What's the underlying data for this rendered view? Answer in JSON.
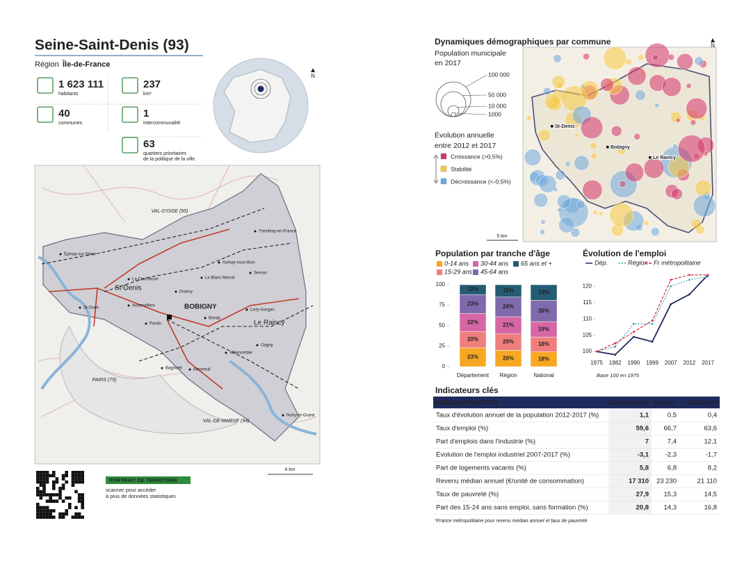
{
  "header": {
    "title": "Seine-Saint-Denis (93)",
    "region_label": "Région",
    "region": "Île-de-France",
    "north": "N"
  },
  "stats": [
    {
      "value": "1 623 111",
      "lines": [
        "habitants"
      ]
    },
    {
      "value": "237",
      "lines": [
        "km²"
      ]
    },
    {
      "value": "40",
      "lines": [
        "communes"
      ]
    },
    {
      "value": "1",
      "lines": [
        "intercommunalité"
      ]
    },
    {
      "value": "63",
      "lines": [
        "quartiers prioritaires",
        "de la politique de la ville"
      ]
    }
  ],
  "map": {
    "places": [
      "VAL-D'OISE (95)",
      "Tremblay-en-France",
      "Épinay-sur-Seine",
      "Aulnay-sous-Bois",
      "Sevran",
      "La Courneuve",
      "Le Blanc-Mesnil",
      "St-Denis",
      "Drancy",
      "St-Ouen",
      "Aubervilliers",
      "BOBIGNY",
      "Livry-Gargan",
      "Pantin",
      "Bondy",
      "Le Raincy",
      "Gagny",
      "Villemomble",
      "Bagnolet",
      "Montreuil",
      "PARIS (75)",
      "VAL-DE-MARNE (94)",
      "Noisy-le-Grand"
    ],
    "scale": "4 km"
  },
  "footer": {
    "badge": "PORTRAIT DE TERRITOIRE",
    "lines": [
      "scanner pour accéder",
      "à plus de données statistiques"
    ]
  },
  "demography_map": {
    "title": "Dynamiques démographiques par commune",
    "north": "N",
    "size_title": "Population municipale",
    "size_subtitle": "en 2017",
    "sizes": [
      "100 000",
      "50 000",
      "10 000",
      "1000"
    ],
    "trend_title": "Évolution annuelle",
    "trend_subtitle": "entre 2012 et 2017",
    "trends": [
      {
        "label": "Croissance (>0,5%)",
        "color": "#d6336c"
      },
      {
        "label": "Stabilité",
        "color": "#f5c842"
      },
      {
        "label": "Décroissance (<-0,5%)",
        "color": "#6fa8dc"
      }
    ],
    "places": [
      "St-Denis",
      "Bobigny",
      "Le Raincy"
    ],
    "scale": "5 km"
  },
  "chart_data": [
    {
      "type": "stacked-bar",
      "title": "Population par tranche d'âge",
      "categories": [
        "Département",
        "Région",
        "National"
      ],
      "series": [
        {
          "name": "0-14 ans",
          "color": "#f7a823",
          "values": [
            23,
            20,
            18
          ],
          "value_labels": [
            "23%",
            "20%",
            "18%"
          ]
        },
        {
          "name": "15-29 ans",
          "color": "#ef7f7c",
          "values": [
            20,
            20,
            18
          ],
          "value_labels": [
            "20%",
            "20%",
            "18%"
          ]
        },
        {
          "name": "30-44 ans",
          "color": "#d667a4",
          "values": [
            22,
            21,
            19
          ],
          "value_labels": [
            "22%",
            "21%",
            "19%"
          ]
        },
        {
          "name": "45-64 ans",
          "color": "#7f6aad",
          "values": [
            23,
            24,
            26
          ],
          "value_labels": [
            "23%",
            "24%",
            "26%"
          ]
        },
        {
          "name": "65 ans et +",
          "color": "#245c73",
          "values": [
            12,
            15,
            19
          ],
          "value_labels": [
            "12%",
            "15%",
            "19%"
          ]
        }
      ],
      "ylim": [
        0,
        100
      ],
      "yticks": [
        0,
        25,
        50,
        75,
        100
      ]
    },
    {
      "type": "line",
      "title": "Évolution de l'emploi",
      "categories": [
        "1975",
        "1982",
        "1990",
        "1999",
        "2007",
        "2012",
        "2017"
      ],
      "series": [
        {
          "name": "Dép.",
          "color": "#1f2a5c",
          "dash": "none",
          "values": [
            100,
            99,
            104.5,
            103,
            114.5,
            117.5,
            123.5
          ]
        },
        {
          "name": "Région",
          "color": "#2aa3b8",
          "dash": "2 2",
          "values": [
            100,
            101.5,
            108.5,
            108.5,
            120,
            122,
            123
          ]
        },
        {
          "name": "Fr métropolitaine",
          "color": "#d7263d",
          "dash": "4 2",
          "values": [
            100,
            102.5,
            106,
            109.5,
            122,
            123.5,
            123.5
          ]
        }
      ],
      "ylim": [
        98,
        124
      ],
      "yticks": [
        100,
        105,
        110,
        115,
        120
      ],
      "note": "Base 100 en 1975"
    }
  ],
  "indicators": {
    "title": "Indicateurs clés",
    "columns": [
      "Indicateur (en 2017)",
      "Département",
      "Région",
      "National*"
    ],
    "rows": [
      [
        "Taux d'évolution annuel de la population 2012-2017 (%)",
        "1,1",
        "0,5",
        "0,4"
      ],
      [
        "Taux d'emploi (%)",
        "59,6",
        "66,7",
        "63,6"
      ],
      [
        "Part d'emplois dans l'industrie (%)",
        "7",
        "7,4",
        "12,1"
      ],
      [
        "Évolution de l'emploi industriel 2007-2017 (%)",
        "-3,1",
        "-2,3",
        "-1,7"
      ],
      [
        "Part de logements vacants (%)",
        "5,8",
        "6,8",
        "8,2"
      ],
      [
        "Revenu médian annuel (€/unité de consommation)",
        "17 310",
        "23 230",
        "21 110"
      ],
      [
        "Taux de pauvreté (%)",
        "27,9",
        "15,3",
        "14,5"
      ],
      [
        "Part des 15-24 ans sans emploi, sans formation (%)",
        "20,8",
        "14,3",
        "16,8"
      ]
    ],
    "note": "*France métropolitaine pour revenu médian annuel et taux de pauvreté"
  }
}
